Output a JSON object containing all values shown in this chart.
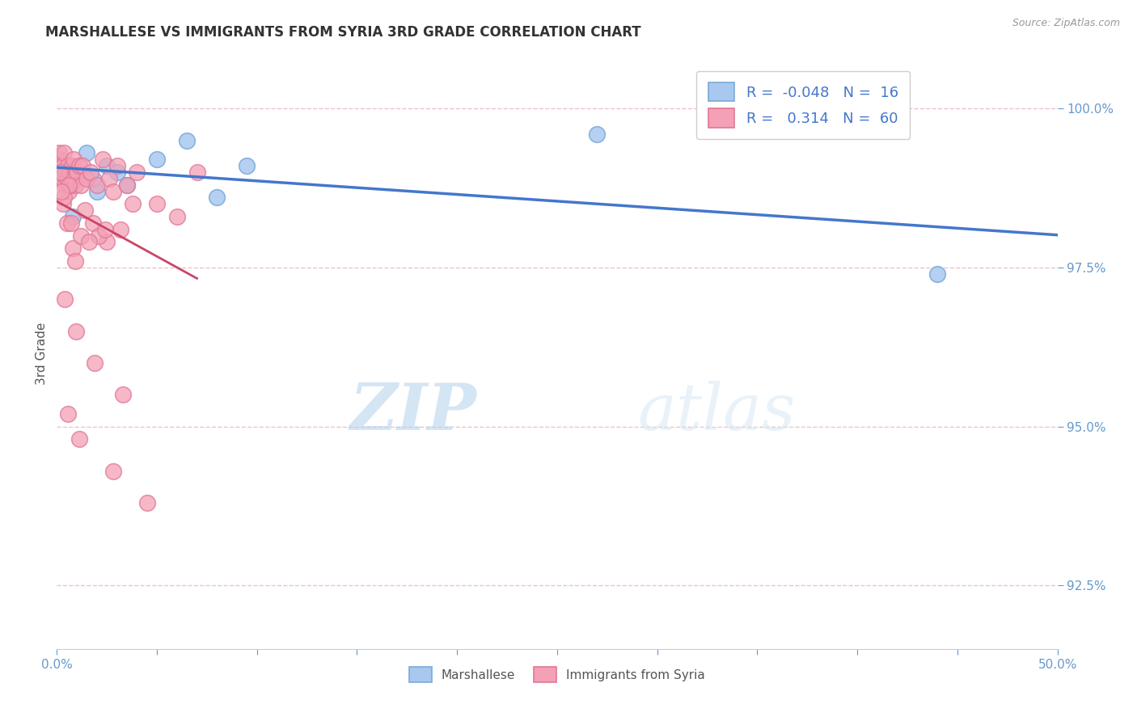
{
  "title": "MARSHALLESE VS IMMIGRANTS FROM SYRIA 3RD GRADE CORRELATION CHART",
  "source_text": "Source: ZipAtlas.com",
  "ylabel": "3rd Grade",
  "xlim": [
    0.0,
    50.0
  ],
  "ylim": [
    91.5,
    100.8
  ],
  "xticks": [
    0.0,
    5.0,
    10.0,
    15.0,
    20.0,
    25.0,
    30.0,
    35.0,
    40.0,
    45.0,
    50.0
  ],
  "xticklabels": [
    "0.0%",
    "",
    "",
    "",
    "",
    "",
    "",
    "",
    "",
    "",
    "50.0%"
  ],
  "ytick_positions": [
    92.5,
    95.0,
    97.5,
    100.0
  ],
  "ytick_labels": [
    "92.5%",
    "95.0%",
    "97.5%",
    "100.0%"
  ],
  "blue_color": "#a8c8f0",
  "pink_color": "#f4a0b5",
  "blue_edge": "#7aaad8",
  "pink_edge": "#e07898",
  "trend_blue": "#4477cc",
  "trend_pink": "#cc4466",
  "legend_R1": "-0.048",
  "legend_N1": "16",
  "legend_R2": "0.314",
  "legend_N2": "60",
  "legend_label1": "Marshallese",
  "legend_label2": "Immigrants from Syria",
  "watermark_zip": "ZIP",
  "watermark_atlas": "atlas",
  "blue_scatter_x": [
    0.2,
    0.5,
    1.0,
    1.5,
    2.0,
    2.5,
    3.0,
    3.5,
    5.0,
    6.5,
    8.0,
    9.5,
    27.0,
    44.0,
    0.8,
    1.8
  ],
  "blue_scatter_y": [
    99.2,
    99.1,
    98.9,
    99.3,
    98.7,
    99.1,
    99.0,
    98.8,
    99.2,
    99.5,
    98.6,
    99.1,
    99.6,
    97.4,
    98.3,
    98.9
  ],
  "pink_scatter_x": [
    0.05,
    0.1,
    0.15,
    0.2,
    0.25,
    0.3,
    0.35,
    0.4,
    0.45,
    0.5,
    0.55,
    0.6,
    0.65,
    0.7,
    0.75,
    0.8,
    0.85,
    0.9,
    1.0,
    1.1,
    1.2,
    1.3,
    1.5,
    1.7,
    2.0,
    2.3,
    2.6,
    2.8,
    3.0,
    3.5,
    4.0,
    5.0,
    6.0,
    7.0,
    0.3,
    0.5,
    0.8,
    1.2,
    1.8,
    2.5,
    3.2,
    0.15,
    0.35,
    0.6,
    0.9,
    1.4,
    2.1,
    0.25,
    0.7,
    1.6,
    2.4,
    3.8,
    0.4,
    0.95,
    1.9,
    3.3,
    0.55,
    1.1,
    2.8,
    4.5
  ],
  "pink_scatter_y": [
    99.2,
    99.3,
    99.1,
    98.9,
    99.0,
    99.1,
    99.3,
    98.8,
    99.0,
    98.9,
    99.1,
    98.7,
    99.0,
    98.8,
    99.1,
    98.9,
    99.2,
    98.8,
    99.0,
    99.1,
    98.8,
    99.1,
    98.9,
    99.0,
    98.8,
    99.2,
    98.9,
    98.7,
    99.1,
    98.8,
    99.0,
    98.5,
    98.3,
    99.0,
    98.5,
    98.2,
    97.8,
    98.0,
    98.2,
    97.9,
    98.1,
    99.0,
    98.6,
    98.8,
    97.6,
    98.4,
    98.0,
    98.7,
    98.2,
    97.9,
    98.1,
    98.5,
    97.0,
    96.5,
    96.0,
    95.5,
    95.2,
    94.8,
    94.3,
    93.8
  ],
  "background_color": "#ffffff",
  "grid_color": "#f0c0cc",
  "title_color": "#333333",
  "axis_label_color": "#555555",
  "tick_color": "#6699cc"
}
